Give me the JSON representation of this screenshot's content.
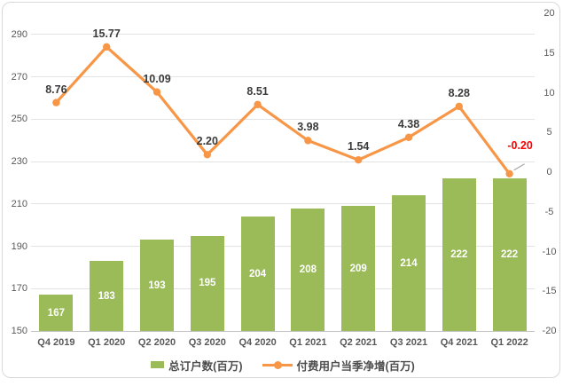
{
  "chart_data": {
    "type": "combo-bar-line",
    "title": "",
    "categories": [
      "Q4 2019",
      "Q1 2020",
      "Q2 2020",
      "Q3 2020",
      "Q4 2020",
      "Q1 2021",
      "Q2 2021",
      "Q3 2021",
      "Q4 2021",
      "Q1 2022"
    ],
    "series": [
      {
        "name": "总订户数(百万)",
        "type": "bar",
        "axis": "left",
        "color": "#9bbb59",
        "values": [
          167,
          183,
          193,
          195,
          204,
          208,
          209,
          214,
          222,
          222
        ],
        "value_labels": [
          "167",
          "183",
          "193",
          "195",
          "204",
          "208",
          "209",
          "214",
          "222",
          "222"
        ],
        "label_color": "#ffffff"
      },
      {
        "name": "付费用户当季净增(百万)",
        "type": "line",
        "axis": "right",
        "color": "#f79646",
        "values": [
          8.76,
          15.77,
          10.09,
          2.2,
          8.51,
          3.98,
          1.54,
          4.38,
          8.28,
          -0.2
        ],
        "value_labels": [
          "8.76",
          "15.77",
          "10.09",
          "2.20",
          "8.51",
          "3.98",
          "1.54",
          "4.38",
          "8.28",
          "-0.20"
        ],
        "label_color": "#3b3b3b",
        "negative_label_color": "#ff0000"
      }
    ],
    "left_axis": {
      "min": 150,
      "max": 300,
      "ticks": [
        290,
        270,
        250,
        230,
        210,
        190,
        170,
        150
      ]
    },
    "right_axis": {
      "min": -20,
      "max": 20,
      "ticks": [
        20,
        15,
        10,
        5,
        0,
        -5,
        -10,
        -15,
        -20
      ]
    },
    "grid": true,
    "legend_position": "bottom-center",
    "adjusted_labels": [
      {
        "index": 9,
        "dx": 12,
        "dy": -19,
        "leader": true
      }
    ]
  },
  "colors": {
    "bar": "#9bbb59",
    "line": "#f79646",
    "negative_label": "#ff0000",
    "axis_text": "#595959",
    "gridline": "#e3e3e3",
    "frame_border": "#d9d9d9",
    "background": "#ffffff",
    "leader_line": "#a6a6a6"
  }
}
